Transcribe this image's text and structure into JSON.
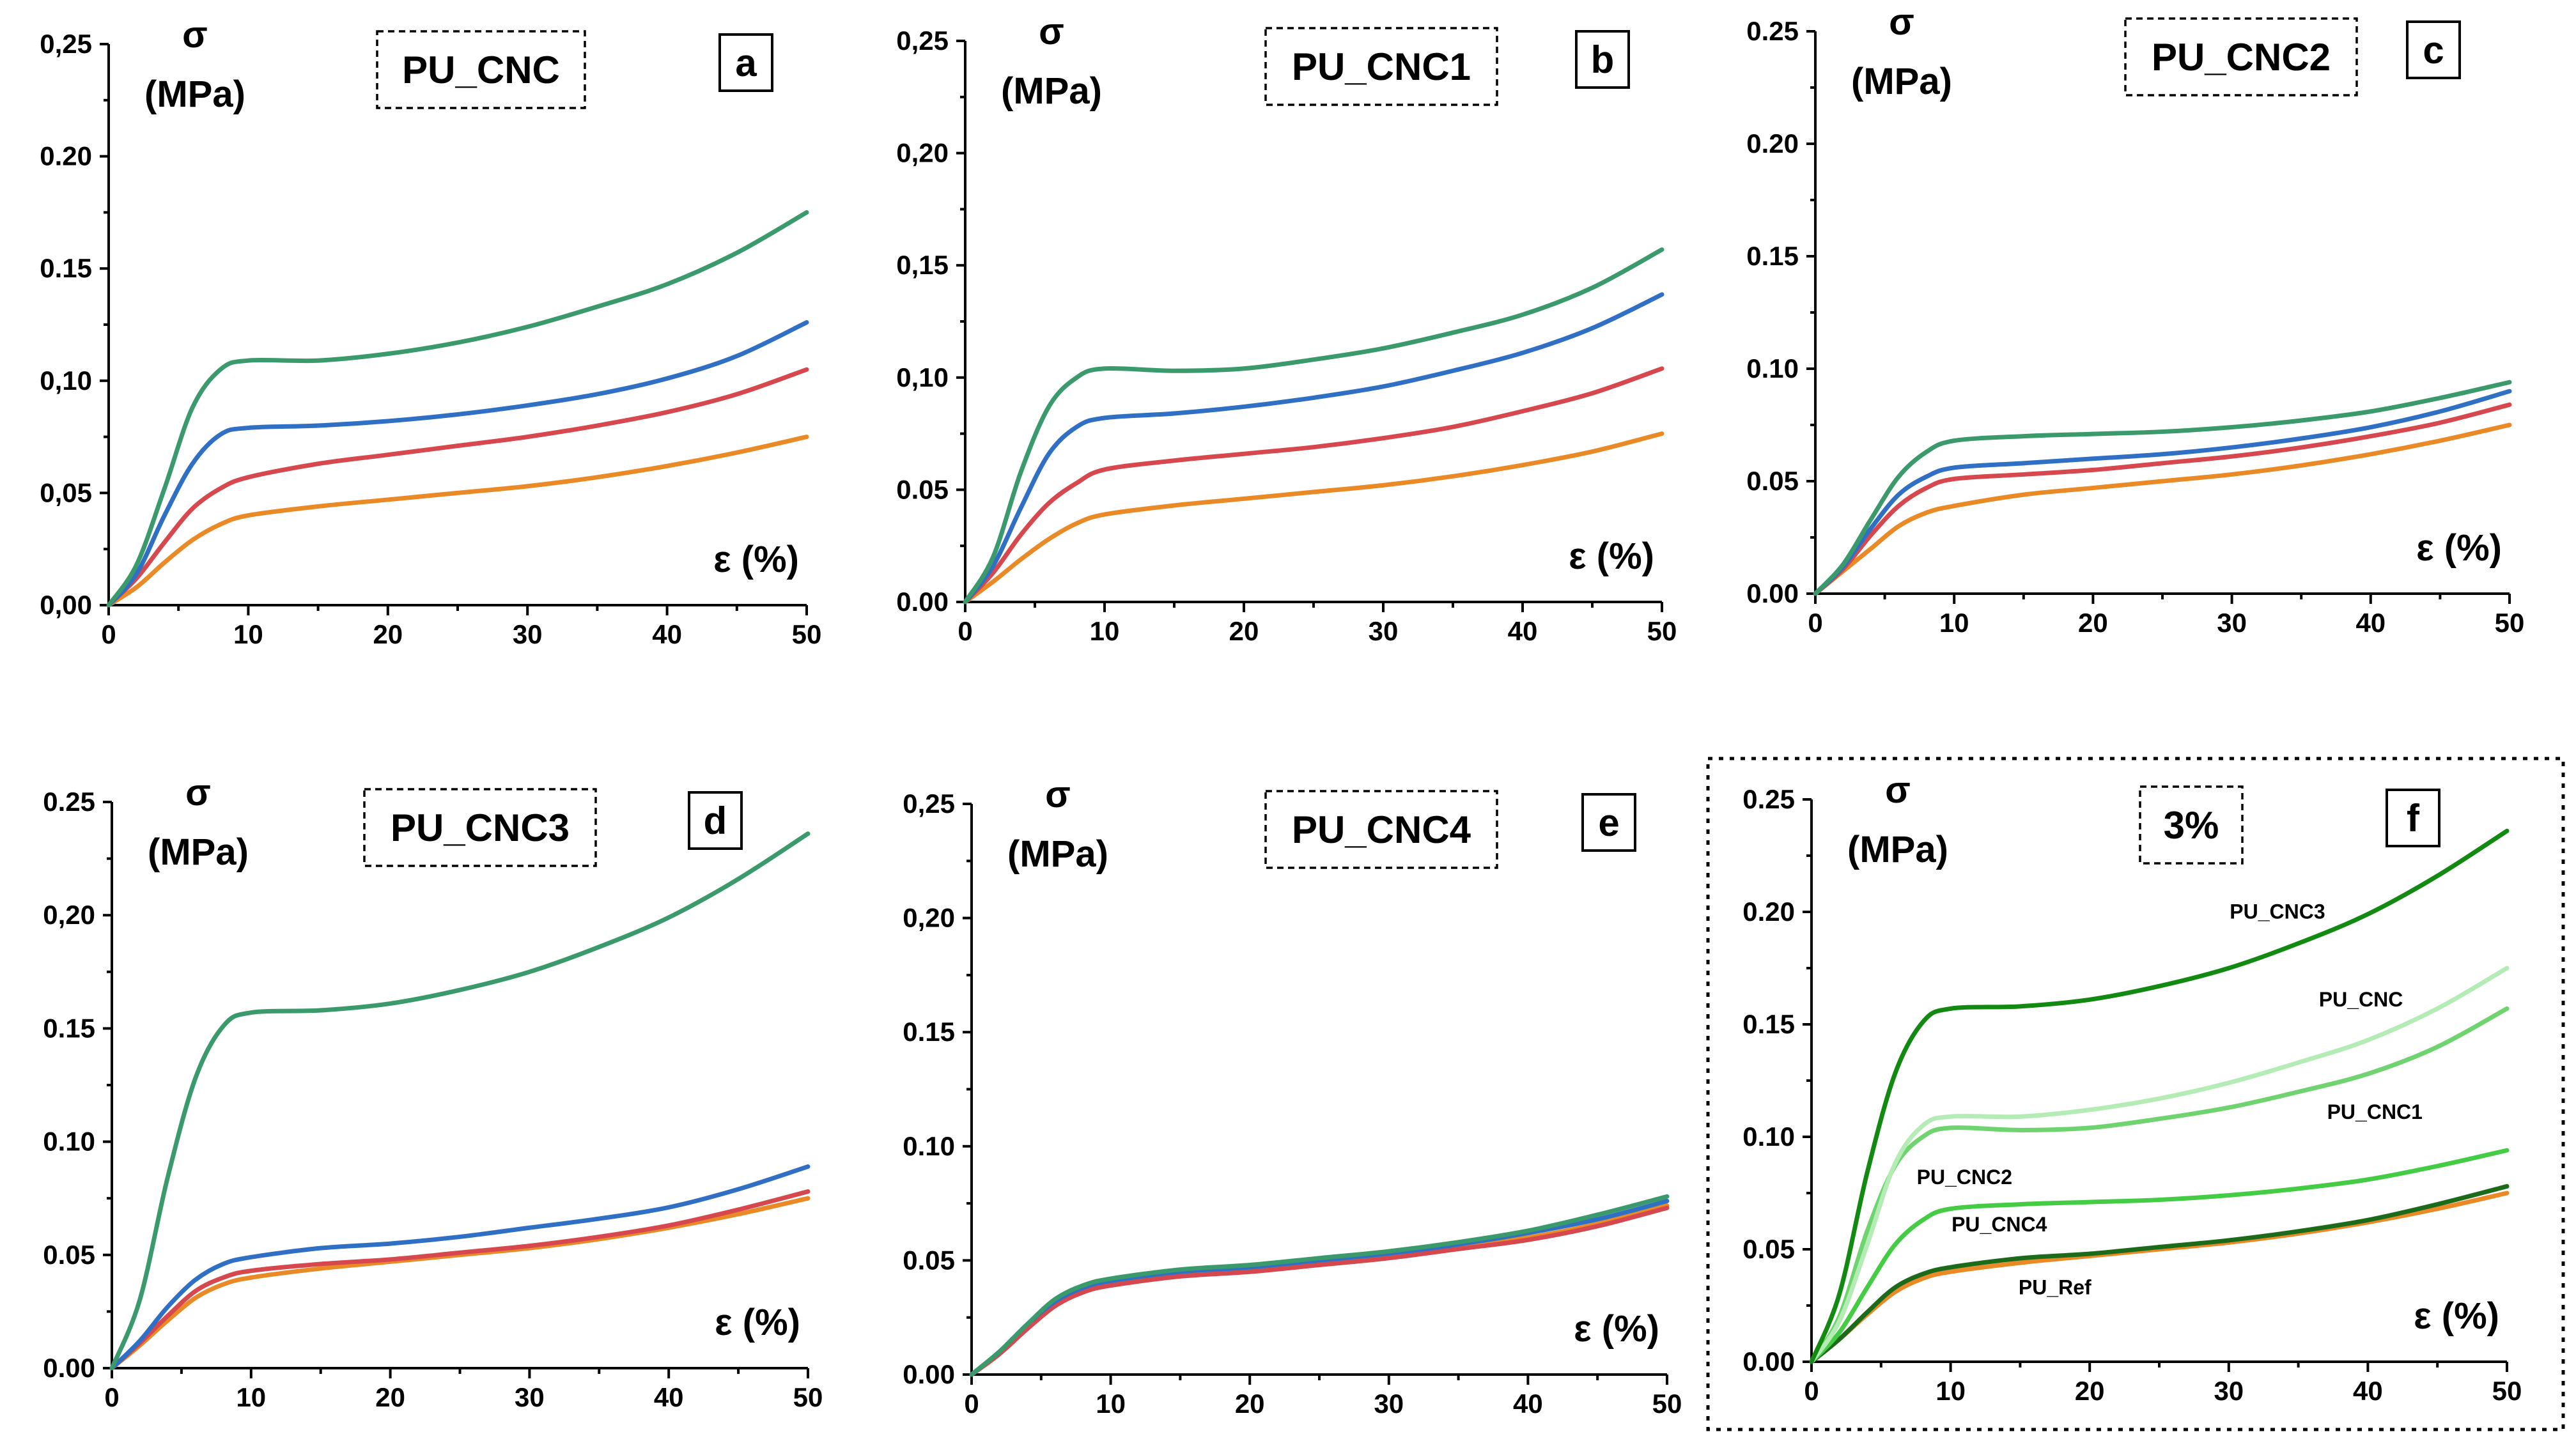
{
  "colors": {
    "c1": "#e98a26",
    "c2": "#d6484d",
    "c3": "#2f6fc4",
    "c4": "#3a9a6c",
    "f_PU_Ref": "#e98a26",
    "f_PU_CNC4": "#1b6b1b",
    "f_PU_CNC2": "#45cc45",
    "f_PU_CNC1": "#6fd36f",
    "f_PU_CNC": "#b5ecb5",
    "f_PU_CNC3": "#128a12"
  },
  "chart_data": [
    {
      "type": "line",
      "panel": "a",
      "title": "PU_CNC",
      "ylabel_sym": "σ",
      "ylabel_unit": "(MPa)",
      "xlabel": "ε (%)",
      "xlim": [
        0,
        50
      ],
      "ylim": [
        0,
        0.25
      ],
      "xticks": [
        "0",
        "10",
        "20",
        "30",
        "40",
        "50"
      ],
      "yticks": [
        "0,00",
        "0,05",
        "0,10",
        "0.15",
        "0.20",
        "0,25"
      ],
      "series": [
        {
          "color": "c1",
          "x": [
            0,
            2,
            4,
            6,
            8,
            10,
            15,
            20,
            25,
            30,
            35,
            40,
            45,
            50
          ],
          "y": [
            0,
            0.008,
            0.019,
            0.029,
            0.036,
            0.04,
            0.044,
            0.047,
            0.05,
            0.053,
            0.057,
            0.062,
            0.068,
            0.075
          ]
        },
        {
          "color": "c2",
          "x": [
            0,
            2,
            4,
            6,
            8,
            10,
            15,
            20,
            25,
            30,
            35,
            40,
            45,
            50
          ],
          "y": [
            0,
            0.012,
            0.028,
            0.043,
            0.052,
            0.057,
            0.063,
            0.067,
            0.071,
            0.075,
            0.08,
            0.086,
            0.094,
            0.105
          ]
        },
        {
          "color": "c3",
          "x": [
            0,
            2,
            4,
            6,
            8,
            10,
            15,
            20,
            25,
            30,
            35,
            40,
            45,
            50
          ],
          "y": [
            0,
            0.014,
            0.04,
            0.063,
            0.076,
            0.079,
            0.08,
            0.082,
            0.085,
            0.089,
            0.094,
            0.101,
            0.111,
            0.126
          ]
        },
        {
          "color": "c4",
          "x": [
            0,
            2,
            4,
            6,
            8,
            10,
            15,
            20,
            25,
            30,
            35,
            40,
            45,
            50
          ],
          "y": [
            0,
            0.018,
            0.052,
            0.088,
            0.105,
            0.109,
            0.109,
            0.112,
            0.117,
            0.124,
            0.133,
            0.143,
            0.157,
            0.175
          ]
        }
      ]
    },
    {
      "type": "line",
      "panel": "b",
      "title": "PU_CNC1",
      "ylabel_sym": "σ",
      "ylabel_unit": "(MPa)",
      "xlabel": "ε (%)",
      "xlim": [
        0,
        50
      ],
      "ylim": [
        0,
        0.25
      ],
      "xticks": [
        "0",
        "10",
        "20",
        "30",
        "40",
        "50"
      ],
      "yticks": [
        "0.00",
        "0.05",
        "0,10",
        "0,15",
        "0,20",
        "0,25"
      ],
      "series": [
        {
          "color": "c1",
          "x": [
            0,
            2,
            4,
            6,
            8,
            10,
            15,
            20,
            25,
            30,
            35,
            40,
            45,
            50
          ],
          "y": [
            0,
            0.009,
            0.019,
            0.028,
            0.035,
            0.039,
            0.043,
            0.046,
            0.049,
            0.052,
            0.056,
            0.061,
            0.067,
            0.075
          ]
        },
        {
          "color": "c2",
          "x": [
            0,
            2,
            4,
            6,
            8,
            10,
            15,
            20,
            25,
            30,
            35,
            40,
            45,
            50
          ],
          "y": [
            0,
            0.013,
            0.03,
            0.044,
            0.053,
            0.059,
            0.063,
            0.066,
            0.069,
            0.073,
            0.078,
            0.085,
            0.093,
            0.104
          ]
        },
        {
          "color": "c3",
          "x": [
            0,
            2,
            4,
            6,
            8,
            10,
            15,
            20,
            25,
            30,
            35,
            40,
            45,
            50
          ],
          "y": [
            0,
            0.016,
            0.042,
            0.066,
            0.078,
            0.082,
            0.084,
            0.087,
            0.091,
            0.096,
            0.103,
            0.111,
            0.122,
            0.137
          ]
        },
        {
          "color": "c4",
          "x": [
            0,
            2,
            4,
            6,
            8,
            10,
            15,
            20,
            25,
            30,
            35,
            40,
            45,
            50
          ],
          "y": [
            0,
            0.02,
            0.058,
            0.087,
            0.1,
            0.104,
            0.103,
            0.104,
            0.108,
            0.113,
            0.12,
            0.128,
            0.14,
            0.157
          ]
        }
      ]
    },
    {
      "type": "line",
      "panel": "c",
      "title": "PU_CNC2",
      "ylabel_sym": "σ",
      "ylabel_unit": "(MPa)",
      "xlabel": "ε (%)",
      "xlim": [
        0,
        50
      ],
      "ylim": [
        0,
        0.25
      ],
      "xticks": [
        "0",
        "10",
        "20",
        "30",
        "40",
        "50"
      ],
      "yticks": [
        "0.00",
        "0.05",
        "0.10",
        "0.15",
        "0.20",
        "0.25"
      ],
      "series": [
        {
          "color": "c1",
          "x": [
            0,
            2,
            4,
            6,
            8,
            10,
            15,
            20,
            25,
            30,
            35,
            40,
            45,
            50
          ],
          "y": [
            0,
            0.01,
            0.02,
            0.03,
            0.036,
            0.039,
            0.044,
            0.047,
            0.05,
            0.053,
            0.057,
            0.062,
            0.068,
            0.075
          ]
        },
        {
          "color": "c2",
          "x": [
            0,
            2,
            4,
            6,
            8,
            10,
            15,
            20,
            25,
            30,
            35,
            40,
            45,
            50
          ],
          "y": [
            0,
            0.011,
            0.026,
            0.039,
            0.047,
            0.051,
            0.053,
            0.055,
            0.058,
            0.061,
            0.065,
            0.07,
            0.076,
            0.084
          ]
        },
        {
          "color": "c3",
          "x": [
            0,
            2,
            4,
            6,
            8,
            10,
            15,
            20,
            25,
            30,
            35,
            40,
            45,
            50
          ],
          "y": [
            0,
            0.012,
            0.029,
            0.044,
            0.052,
            0.056,
            0.058,
            0.06,
            0.062,
            0.065,
            0.069,
            0.074,
            0.081,
            0.09
          ]
        },
        {
          "color": "c4",
          "x": [
            0,
            2,
            4,
            6,
            8,
            10,
            15,
            20,
            25,
            30,
            35,
            40,
            45,
            50
          ],
          "y": [
            0,
            0.013,
            0.033,
            0.052,
            0.063,
            0.068,
            0.07,
            0.071,
            0.072,
            0.074,
            0.077,
            0.081,
            0.087,
            0.094
          ]
        }
      ]
    },
    {
      "type": "line",
      "panel": "d",
      "title": "PU_CNC3",
      "ylabel_sym": "σ",
      "ylabel_unit": "(MPa)",
      "xlabel": "ε (%)",
      "xlim": [
        0,
        50
      ],
      "ylim": [
        0,
        0.25
      ],
      "xticks": [
        "0",
        "10",
        "20",
        "30",
        "40",
        "50"
      ],
      "yticks": [
        "0.00",
        "0.05",
        "0.10",
        "0.15",
        "0,20",
        "0.25"
      ],
      "series": [
        {
          "color": "c1",
          "x": [
            0,
            2,
            4,
            6,
            8,
            10,
            15,
            20,
            25,
            30,
            35,
            40,
            45,
            50
          ],
          "y": [
            0,
            0.01,
            0.021,
            0.031,
            0.037,
            0.04,
            0.044,
            0.047,
            0.05,
            0.053,
            0.057,
            0.062,
            0.068,
            0.075
          ]
        },
        {
          "color": "c2",
          "x": [
            0,
            2,
            4,
            6,
            8,
            10,
            15,
            20,
            25,
            30,
            35,
            40,
            45,
            50
          ],
          "y": [
            0,
            0.011,
            0.023,
            0.034,
            0.04,
            0.043,
            0.046,
            0.048,
            0.051,
            0.054,
            0.058,
            0.063,
            0.07,
            0.078
          ]
        },
        {
          "color": "c3",
          "x": [
            0,
            2,
            4,
            6,
            8,
            10,
            15,
            20,
            25,
            30,
            35,
            40,
            45,
            50
          ],
          "y": [
            0,
            0.012,
            0.027,
            0.039,
            0.046,
            0.049,
            0.053,
            0.055,
            0.058,
            0.062,
            0.066,
            0.071,
            0.079,
            0.089
          ]
        },
        {
          "color": "c4",
          "x": [
            0,
            2,
            4,
            6,
            8,
            10,
            15,
            20,
            25,
            30,
            35,
            40,
            45,
            50
          ],
          "y": [
            0,
            0.03,
            0.084,
            0.128,
            0.151,
            0.157,
            0.158,
            0.161,
            0.167,
            0.175,
            0.186,
            0.199,
            0.216,
            0.236
          ]
        }
      ]
    },
    {
      "type": "line",
      "panel": "e",
      "title": "PU_CNC4",
      "ylabel_sym": "σ",
      "ylabel_unit": "(MPa)",
      "xlabel": "ε (%)",
      "xlim": [
        0,
        50
      ],
      "ylim": [
        0,
        0.25
      ],
      "xticks": [
        "0",
        "10",
        "20",
        "30",
        "40",
        "50"
      ],
      "yticks": [
        "0.00",
        "0.05",
        "0.10",
        "0.15",
        "0,20",
        "0,25"
      ],
      "series": [
        {
          "color": "c1",
          "x": [
            0,
            2,
            4,
            6,
            8,
            10,
            15,
            20,
            25,
            30,
            35,
            40,
            45,
            50
          ],
          "y": [
            0,
            0.009,
            0.021,
            0.031,
            0.037,
            0.04,
            0.044,
            0.046,
            0.049,
            0.052,
            0.056,
            0.06,
            0.066,
            0.074
          ]
        },
        {
          "color": "c2",
          "x": [
            0,
            2,
            4,
            6,
            8,
            10,
            15,
            20,
            25,
            30,
            35,
            40,
            45,
            50
          ],
          "y": [
            0,
            0.009,
            0.02,
            0.03,
            0.036,
            0.039,
            0.043,
            0.045,
            0.048,
            0.051,
            0.055,
            0.059,
            0.065,
            0.073
          ]
        },
        {
          "color": "c3",
          "x": [
            0,
            2,
            4,
            6,
            8,
            10,
            15,
            20,
            25,
            30,
            35,
            40,
            45,
            50
          ],
          "y": [
            0,
            0.01,
            0.022,
            0.032,
            0.038,
            0.041,
            0.045,
            0.047,
            0.05,
            0.053,
            0.057,
            0.062,
            0.068,
            0.076
          ]
        },
        {
          "color": "c4",
          "x": [
            0,
            2,
            4,
            6,
            8,
            10,
            15,
            20,
            25,
            30,
            35,
            40,
            45,
            50
          ],
          "y": [
            0,
            0.01,
            0.022,
            0.033,
            0.039,
            0.042,
            0.046,
            0.048,
            0.051,
            0.054,
            0.058,
            0.063,
            0.07,
            0.078
          ]
        }
      ]
    },
    {
      "type": "line",
      "panel": "f",
      "title": "3%",
      "ylabel_sym": "σ",
      "ylabel_unit": "(MPa)",
      "xlabel": "ε (%)",
      "xlim": [
        0,
        50
      ],
      "ylim": [
        0,
        0.25
      ],
      "xticks": [
        "0",
        "10",
        "20",
        "30",
        "40",
        "50"
      ],
      "yticks": [
        "0.00",
        "0.05",
        "0.10",
        "0.15",
        "0.20",
        "0.25"
      ],
      "series": [
        {
          "name": "PU_Ref",
          "color": "f_PU_Ref",
          "x": [
            0,
            2,
            4,
            6,
            8,
            10,
            15,
            20,
            25,
            30,
            35,
            40,
            45,
            50
          ],
          "y": [
            0,
            0.01,
            0.021,
            0.031,
            0.037,
            0.04,
            0.044,
            0.047,
            0.05,
            0.053,
            0.057,
            0.062,
            0.068,
            0.075
          ]
        },
        {
          "name": "PU_CNC4",
          "color": "f_PU_CNC4",
          "x": [
            0,
            2,
            4,
            6,
            8,
            10,
            15,
            20,
            25,
            30,
            35,
            40,
            45,
            50
          ],
          "y": [
            0,
            0.01,
            0.022,
            0.033,
            0.039,
            0.042,
            0.046,
            0.048,
            0.051,
            0.054,
            0.058,
            0.063,
            0.07,
            0.078
          ]
        },
        {
          "name": "PU_CNC2",
          "color": "f_PU_CNC2",
          "x": [
            0,
            2,
            4,
            6,
            8,
            10,
            15,
            20,
            25,
            30,
            35,
            40,
            45,
            50
          ],
          "y": [
            0,
            0.013,
            0.033,
            0.052,
            0.063,
            0.068,
            0.07,
            0.071,
            0.072,
            0.074,
            0.077,
            0.081,
            0.087,
            0.094
          ]
        },
        {
          "name": "PU_CNC1",
          "color": "f_PU_CNC1",
          "x": [
            0,
            2,
            4,
            6,
            8,
            10,
            15,
            20,
            25,
            30,
            35,
            40,
            45,
            50
          ],
          "y": [
            0,
            0.02,
            0.058,
            0.087,
            0.1,
            0.104,
            0.103,
            0.104,
            0.108,
            0.113,
            0.12,
            0.128,
            0.14,
            0.157
          ]
        },
        {
          "name": "PU_CNC",
          "color": "f_PU_CNC",
          "x": [
            0,
            2,
            4,
            6,
            8,
            10,
            15,
            20,
            25,
            30,
            35,
            40,
            45,
            50
          ],
          "y": [
            0,
            0.018,
            0.052,
            0.088,
            0.105,
            0.109,
            0.109,
            0.112,
            0.117,
            0.124,
            0.133,
            0.143,
            0.157,
            0.175
          ]
        },
        {
          "name": "PU_CNC3",
          "color": "f_PU_CNC3",
          "x": [
            0,
            2,
            4,
            6,
            8,
            10,
            15,
            20,
            25,
            30,
            35,
            40,
            45,
            50
          ],
          "y": [
            0,
            0.03,
            0.084,
            0.128,
            0.151,
            0.157,
            0.158,
            0.161,
            0.167,
            0.175,
            0.186,
            0.199,
            0.216,
            0.236
          ]
        }
      ],
      "annotations": [
        {
          "text": "PU_CNC3",
          "x": 33.5,
          "y": 0.197
        },
        {
          "text": "PU_CNC",
          "x": 39.5,
          "y": 0.158
        },
        {
          "text": "PU_CNC1",
          "x": 40.5,
          "y": 0.108
        },
        {
          "text": "PU_CNC2",
          "x": 11,
          "y": 0.079
        },
        {
          "text": "PU_CNC4",
          "x": 13.5,
          "y": 0.058
        },
        {
          "text": "PU_Ref",
          "x": 17.5,
          "y": 0.03
        }
      ]
    }
  ]
}
